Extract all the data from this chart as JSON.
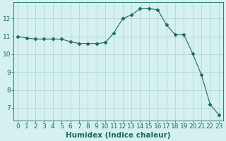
{
  "x": [
    0,
    1,
    2,
    3,
    4,
    5,
    6,
    7,
    8,
    9,
    10,
    11,
    12,
    13,
    14,
    15,
    16,
    17,
    18,
    19,
    20,
    21,
    22,
    23
  ],
  "y": [
    11.0,
    10.9,
    10.85,
    10.85,
    10.85,
    10.85,
    10.7,
    10.6,
    10.6,
    10.6,
    10.65,
    11.2,
    12.0,
    12.2,
    12.55,
    12.55,
    12.5,
    11.65,
    11.1,
    11.1,
    10.05,
    8.85,
    7.2,
    6.6
  ],
  "line_color": "#1a6b5a",
  "marker": "D",
  "marker_size": 2.5,
  "bg_color": "#d5f0f0",
  "grid_color": "#b0d8d8",
  "xlabel": "Humidex (Indice chaleur)",
  "xlabel_fontsize": 7.5,
  "tick_fontsize": 6.5,
  "ylim": [
    6.3,
    12.9
  ],
  "yticks": [
    7,
    8,
    9,
    10,
    11,
    12
  ],
  "xticks": [
    0,
    1,
    2,
    3,
    4,
    5,
    6,
    7,
    8,
    9,
    10,
    11,
    12,
    13,
    14,
    15,
    16,
    17,
    18,
    19,
    20,
    21,
    22,
    23
  ]
}
